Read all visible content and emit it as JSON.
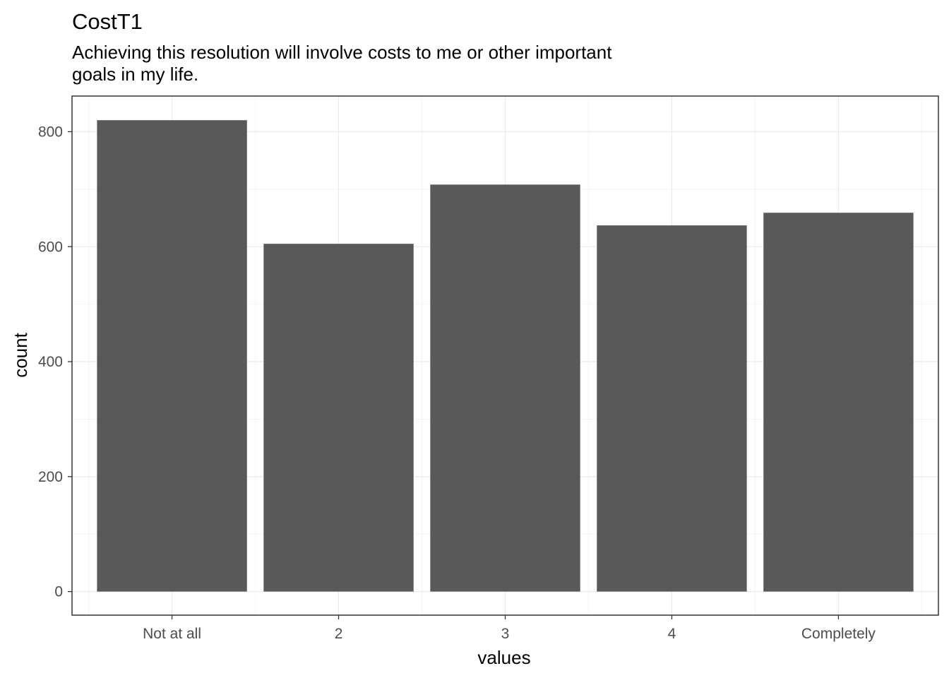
{
  "colors": {
    "bar": "#595959",
    "grid_major": "#ebebeb",
    "grid_minor": "#f5f5f5",
    "panel_border": "#333333",
    "tick_text": "#4d4d4d"
  },
  "chart_data": {
    "type": "bar",
    "title": "CostT1",
    "subtitle_lines": [
      "Achieving this resolution will involve costs to me or other important",
      "goals in my life."
    ],
    "xlabel": "values",
    "ylabel": "count",
    "categories": [
      "Not at all",
      "2",
      "3",
      "4",
      "Completely"
    ],
    "values": [
      820,
      605,
      708,
      637,
      659
    ],
    "ylim": [
      -41,
      862
    ],
    "yticks": [
      0,
      200,
      400,
      600,
      800
    ],
    "grid": true,
    "legend": "none"
  }
}
